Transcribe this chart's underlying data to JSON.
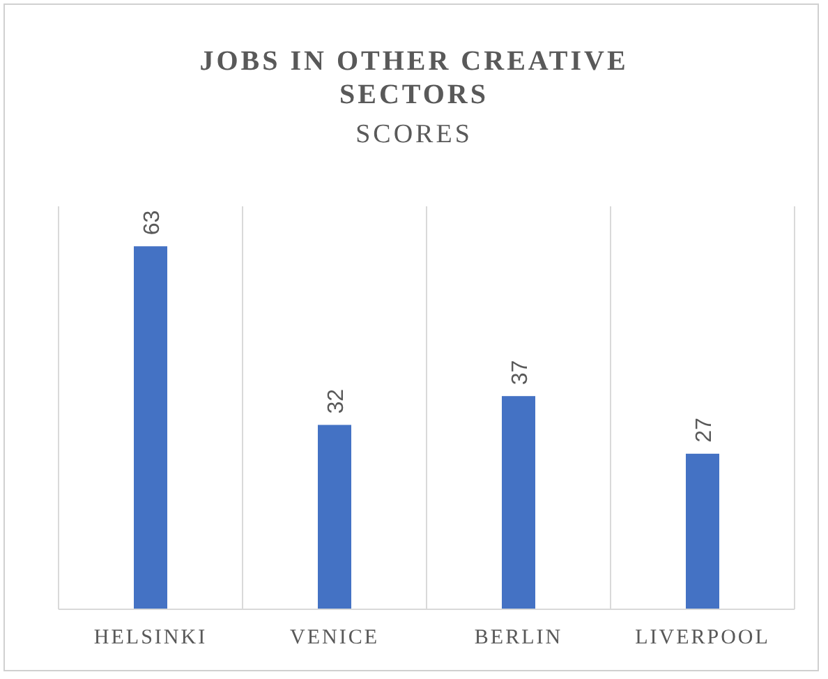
{
  "chart_data": {
    "type": "bar",
    "title": "JOBS IN OTHER CREATIVE SECTORS",
    "subtitle": "SCORES",
    "categories": [
      "HELSINKI",
      "VENICE",
      "BERLIN",
      "LIVERPOOL"
    ],
    "values": [
      63,
      32,
      37,
      27
    ],
    "color": "#4472c4",
    "data_labels": true,
    "grid": "x"
  }
}
